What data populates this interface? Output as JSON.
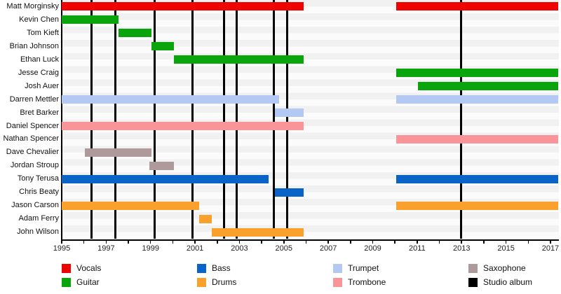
{
  "chart_data": {
    "type": "bar",
    "subtype": "gantt-timeline-band-members",
    "title": "",
    "x_axis": {
      "min": 1995,
      "max": 2017.4,
      "tick_interval_years": 1,
      "labeled_years": [
        1995,
        1997,
        1999,
        2001,
        2003,
        2005,
        2007,
        2009,
        2011,
        2013,
        2015,
        2017
      ],
      "tick_labels": [
        "1995",
        "1997",
        "1999",
        "2001",
        "2003",
        "2005",
        "2007",
        "2009",
        "2011",
        "2013",
        "2015",
        "2017"
      ]
    },
    "roles": {
      "Vocals": "#ee0202",
      "Guitar": "#0aa50c",
      "Bass": "#0a64c8",
      "Drums": "#f9a12c",
      "Trumpet": "#b3c8f2",
      "Trombone": "#f99498",
      "Saxophone": "#ae999b",
      "Studio album": "#000000"
    },
    "members": [
      {
        "name": "Matt Morginsky",
        "role": "Vocals",
        "segments": [
          [
            1995.0,
            2005.9
          ],
          [
            2010.05,
            2017.35
          ]
        ]
      },
      {
        "name": "Kevin Chen",
        "role": "Guitar",
        "segments": [
          [
            1995.0,
            1997.55
          ]
        ]
      },
      {
        "name": "Tom Kieft",
        "role": "Guitar",
        "segments": [
          [
            1997.55,
            1999.05
          ]
        ]
      },
      {
        "name": "Brian Johnson",
        "role": "Guitar",
        "segments": [
          [
            1999.05,
            2000.05
          ]
        ]
      },
      {
        "name": "Ethan Luck",
        "role": "Guitar",
        "segments": [
          [
            2000.05,
            2005.9
          ]
        ]
      },
      {
        "name": "Jesse Craig",
        "role": "Guitar",
        "segments": [
          [
            2010.05,
            2017.35
          ]
        ]
      },
      {
        "name": "Josh Auer",
        "role": "Guitar",
        "segments": [
          [
            2011.05,
            2017.35
          ]
        ]
      },
      {
        "name": "Darren Mettler",
        "role": "Trumpet",
        "segments": [
          [
            1995.0,
            2004.8
          ],
          [
            2010.05,
            2017.35
          ]
        ]
      },
      {
        "name": "Bret Barker",
        "role": "Trumpet",
        "segments": [
          [
            2004.6,
            2005.9
          ]
        ]
      },
      {
        "name": "Daniel Spencer",
        "role": "Trombone",
        "segments": [
          [
            1995.0,
            2005.9
          ]
        ]
      },
      {
        "name": "Nathan Spencer",
        "role": "Trombone",
        "segments": [
          [
            2010.05,
            2017.35
          ]
        ]
      },
      {
        "name": "Dave Chevalier",
        "role": "Saxophone",
        "segments": [
          [
            1996.05,
            1999.05
          ]
        ]
      },
      {
        "name": "Jordan Stroup",
        "role": "Saxophone",
        "segments": [
          [
            1998.95,
            2000.05
          ]
        ]
      },
      {
        "name": "Tony Terusa",
        "role": "Bass",
        "segments": [
          [
            1995.0,
            2004.3
          ],
          [
            2010.05,
            2017.35
          ]
        ]
      },
      {
        "name": "Chris Beaty",
        "role": "Bass",
        "segments": [
          [
            2004.6,
            2005.9
          ]
        ]
      },
      {
        "name": "Jason Carson",
        "role": "Drums",
        "segments": [
          [
            1995.0,
            2001.2
          ],
          [
            2010.05,
            2017.35
          ]
        ]
      },
      {
        "name": "Adam Ferry",
        "role": "Drums",
        "segments": [
          [
            2001.2,
            2001.75
          ]
        ]
      },
      {
        "name": "John Wilson",
        "role": "Drums",
        "segments": [
          [
            2001.75,
            2005.9
          ]
        ]
      }
    ],
    "studio_album_years": [
      1996.33,
      1997.43,
      1999.17,
      2000.89,
      2002.32,
      2002.88,
      2004.56,
      2005.15,
      2012.98
    ],
    "legend": [
      {
        "label": "Vocals",
        "color": "#ee0202"
      },
      {
        "label": "Guitar",
        "color": "#0aa50c"
      },
      {
        "label": "Bass",
        "color": "#0a64c8"
      },
      {
        "label": "Drums",
        "color": "#f9a12c"
      },
      {
        "label": "Trumpet",
        "color": "#b3c8f2"
      },
      {
        "label": "Trombone",
        "color": "#f99498"
      },
      {
        "label": "Saxophone",
        "color": "#ae999b"
      },
      {
        "label": "Studio album",
        "color": "#000000"
      }
    ],
    "legend_layout": {
      "columns": 4,
      "rows": 2,
      "position": "below-axis"
    },
    "grid": "horizontal-row-stripes",
    "background": "#ffffff"
  }
}
